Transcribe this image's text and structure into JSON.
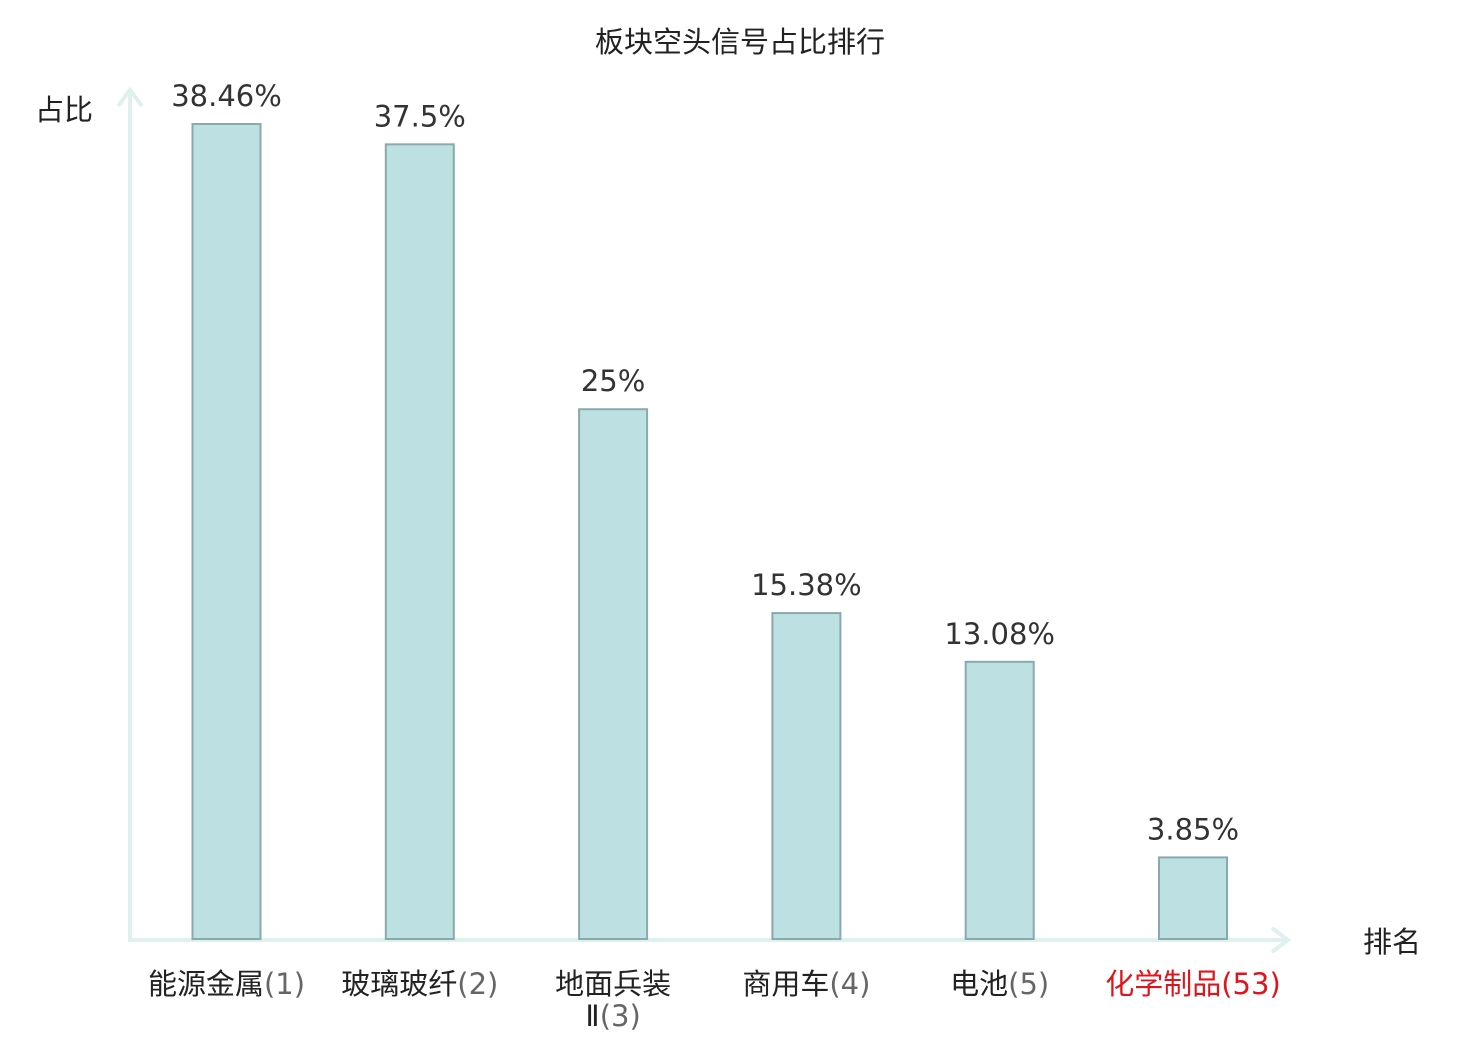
{
  "chart_data": {
    "type": "bar",
    "title": "板块空头信号占比排行",
    "ylabel": "占比",
    "xlabel": "排名",
    "categories": [
      {
        "name": "能源金属",
        "rank": "(1)",
        "highlight": false
      },
      {
        "name": "玻璃玻纤",
        "rank": "(2)",
        "highlight": false
      },
      {
        "name": "地面兵装",
        "name_line2": "Ⅱ",
        "rank": "(3)",
        "highlight": false
      },
      {
        "name": "商用车",
        "rank": "(4)",
        "highlight": false
      },
      {
        "name": "电池",
        "rank": "(5)",
        "highlight": false
      },
      {
        "name": "化学制品",
        "rank": "(53)",
        "highlight": true
      }
    ],
    "values": [
      38.46,
      37.5,
      25,
      15.38,
      13.08,
      3.85
    ],
    "value_labels": [
      "38.46%",
      "37.5%",
      "25%",
      "15.38%",
      "13.08%",
      "3.85%"
    ],
    "ylim": [
      0,
      38.46
    ],
    "grid": false,
    "colors": {
      "bar_fill": "#bde0e2",
      "bar_stroke": "#8aa9ab",
      "axis": "#dff1ef",
      "highlight_text": "#e0141c",
      "normal_text": "#222222",
      "rank_text": "#666666"
    }
  }
}
